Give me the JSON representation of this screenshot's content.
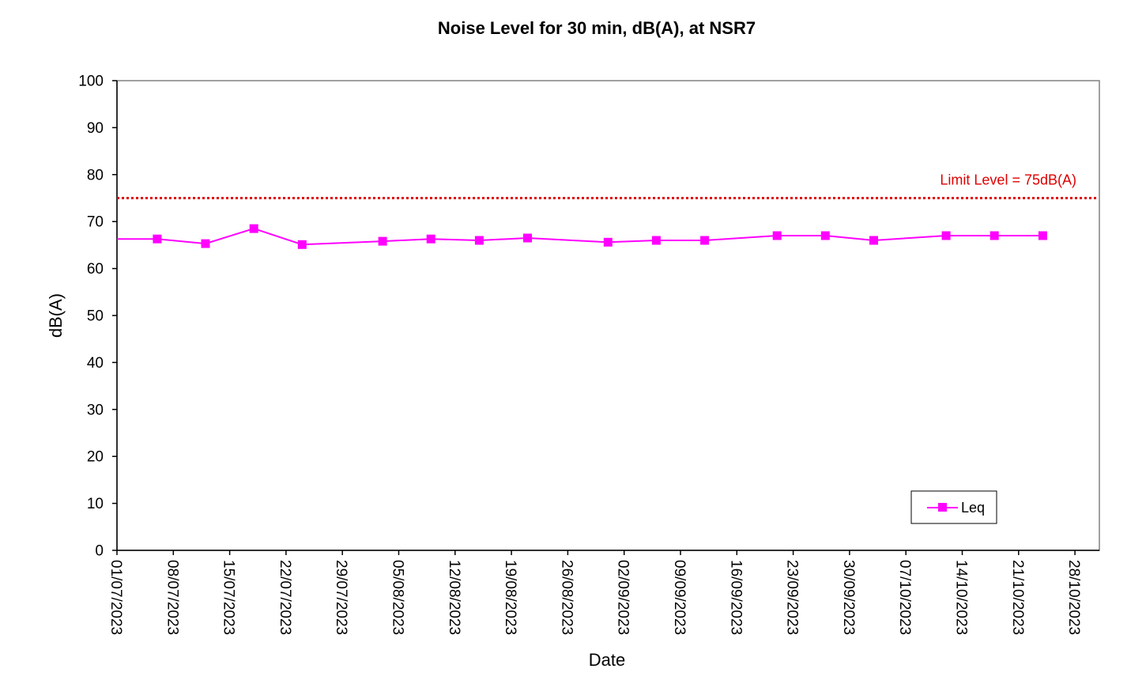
{
  "chart_data": {
    "type": "line",
    "title": "Noise Level for 30 min, dB(A), at NSR7",
    "xlabel": "Date",
    "ylabel": "dB(A)",
    "ylim": [
      0,
      100
    ],
    "yticks": [
      0,
      10,
      20,
      30,
      40,
      50,
      60,
      70,
      80,
      90,
      100
    ],
    "xlim": [
      "2023-07-01",
      "2023-10-28"
    ],
    "xticks": [
      "01/07/2023",
      "08/07/2023",
      "15/07/2023",
      "22/07/2023",
      "29/07/2023",
      "05/08/2023",
      "12/08/2023",
      "19/08/2023",
      "26/08/2023",
      "02/09/2023",
      "09/09/2023",
      "16/09/2023",
      "23/09/2023",
      "30/09/2023",
      "07/10/2023",
      "14/10/2023",
      "21/10/2023",
      "28/10/2023"
    ],
    "grid": false,
    "legend_position": "bottom-right",
    "series": [
      {
        "name": "Leq",
        "color": "#FF00FF",
        "marker": "square",
        "x": [
          "2023-07-06",
          "2023-07-12",
          "2023-07-18",
          "2023-07-24",
          "2023-08-03",
          "2023-08-09",
          "2023-08-15",
          "2023-08-21",
          "2023-08-31",
          "2023-09-06",
          "2023-09-12",
          "2023-09-21",
          "2023-09-27",
          "2023-10-03",
          "2023-10-12",
          "2023-10-18",
          "2023-10-24"
        ],
        "values": [
          66.3,
          65.3,
          68.5,
          65.1,
          65.8,
          66.3,
          66.0,
          66.5,
          65.6,
          66.0,
          66.0,
          67.0,
          67.0,
          66.0,
          67.0,
          67.0,
          67.0
        ]
      }
    ],
    "reference_lines": [
      {
        "label": "Limit Level = 75dB(A)",
        "value": 75,
        "color": "#DD0000",
        "style": "dotted"
      }
    ]
  }
}
